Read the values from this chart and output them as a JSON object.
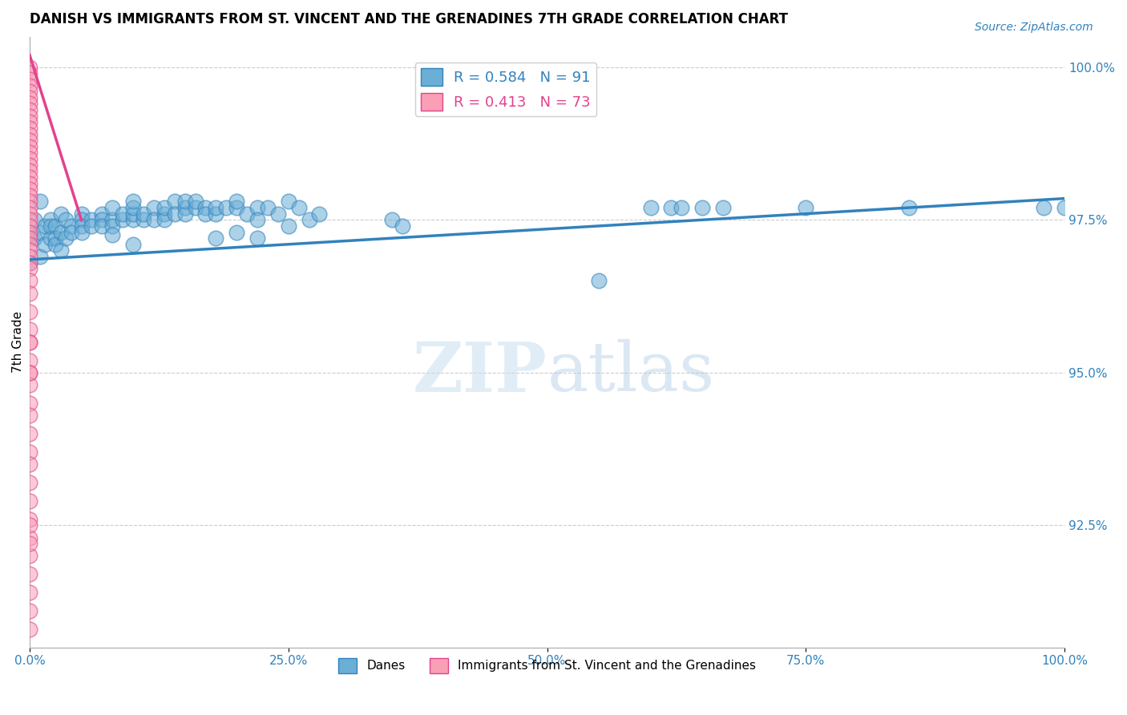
{
  "title": "DANISH VS IMMIGRANTS FROM ST. VINCENT AND THE GRENADINES 7TH GRADE CORRELATION CHART",
  "source": "Source: ZipAtlas.com",
  "ylabel": "7th Grade",
  "ylabel_right_ticks": [
    "100.0%",
    "97.5%",
    "95.0%",
    "92.5%"
  ],
  "ylabel_right_values": [
    1.0,
    0.975,
    0.95,
    0.925
  ],
  "xlim": [
    0.0,
    1.0
  ],
  "ylim": [
    0.905,
    1.005
  ],
  "legend_r_blue": "R = 0.584",
  "legend_n_blue": "N = 91",
  "legend_r_pink": "R = 0.413",
  "legend_n_pink": "N = 73",
  "legend_label_blue": "Danes",
  "legend_label_pink": "Immigrants from St. Vincent and the Grenadines",
  "blue_color": "#6baed6",
  "pink_color": "#fa9fb5",
  "trendline_blue_color": "#3182bd",
  "trendline_pink_color": "#e2428e",
  "watermark_zip": "ZIP",
  "watermark_atlas": "atlas",
  "blue_scatter": [
    [
      0.0,
      0.9725
    ],
    [
      0.0,
      0.968
    ],
    [
      0.005,
      0.975
    ],
    [
      0.005,
      0.972
    ],
    [
      0.01,
      0.978
    ],
    [
      0.01,
      0.973
    ],
    [
      0.01,
      0.969
    ],
    [
      0.015,
      0.971
    ],
    [
      0.015,
      0.974
    ],
    [
      0.02,
      0.972
    ],
    [
      0.02,
      0.975
    ],
    [
      0.02,
      0.974
    ],
    [
      0.025,
      0.974
    ],
    [
      0.025,
      0.972
    ],
    [
      0.025,
      0.971
    ],
    [
      0.03,
      0.973
    ],
    [
      0.03,
      0.97
    ],
    [
      0.03,
      0.976
    ],
    [
      0.035,
      0.972
    ],
    [
      0.035,
      0.975
    ],
    [
      0.04,
      0.974
    ],
    [
      0.04,
      0.973
    ],
    [
      0.05,
      0.976
    ],
    [
      0.05,
      0.975
    ],
    [
      0.05,
      0.974
    ],
    [
      0.05,
      0.973
    ],
    [
      0.06,
      0.975
    ],
    [
      0.06,
      0.974
    ],
    [
      0.07,
      0.976
    ],
    [
      0.07,
      0.975
    ],
    [
      0.07,
      0.974
    ],
    [
      0.08,
      0.975
    ],
    [
      0.08,
      0.974
    ],
    [
      0.08,
      0.977
    ],
    [
      0.09,
      0.975
    ],
    [
      0.09,
      0.976
    ],
    [
      0.1,
      0.975
    ],
    [
      0.1,
      0.976
    ],
    [
      0.1,
      0.977
    ],
    [
      0.1,
      0.978
    ],
    [
      0.11,
      0.975
    ],
    [
      0.11,
      0.976
    ],
    [
      0.12,
      0.977
    ],
    [
      0.12,
      0.975
    ],
    [
      0.13,
      0.976
    ],
    [
      0.13,
      0.975
    ],
    [
      0.13,
      0.977
    ],
    [
      0.14,
      0.978
    ],
    [
      0.14,
      0.976
    ],
    [
      0.15,
      0.977
    ],
    [
      0.15,
      0.976
    ],
    [
      0.15,
      0.978
    ],
    [
      0.16,
      0.977
    ],
    [
      0.16,
      0.978
    ],
    [
      0.17,
      0.977
    ],
    [
      0.17,
      0.976
    ],
    [
      0.18,
      0.976
    ],
    [
      0.18,
      0.977
    ],
    [
      0.19,
      0.977
    ],
    [
      0.2,
      0.977
    ],
    [
      0.2,
      0.978
    ],
    [
      0.21,
      0.976
    ],
    [
      0.22,
      0.977
    ],
    [
      0.22,
      0.975
    ],
    [
      0.23,
      0.977
    ],
    [
      0.24,
      0.976
    ],
    [
      0.25,
      0.978
    ],
    [
      0.25,
      0.974
    ],
    [
      0.26,
      0.977
    ],
    [
      0.27,
      0.975
    ],
    [
      0.28,
      0.976
    ],
    [
      0.08,
      0.9725
    ],
    [
      0.1,
      0.971
    ],
    [
      0.18,
      0.972
    ],
    [
      0.2,
      0.973
    ],
    [
      0.22,
      0.972
    ],
    [
      0.35,
      0.975
    ],
    [
      0.36,
      0.974
    ],
    [
      0.55,
      0.965
    ],
    [
      0.6,
      0.977
    ],
    [
      0.62,
      0.977
    ],
    [
      0.63,
      0.977
    ],
    [
      0.65,
      0.977
    ],
    [
      0.67,
      0.977
    ],
    [
      0.75,
      0.977
    ],
    [
      0.85,
      0.977
    ],
    [
      0.98,
      0.977
    ],
    [
      1.0,
      0.977
    ]
  ],
  "pink_scatter": [
    [
      0.0,
      1.0
    ],
    [
      0.0,
      0.999
    ],
    [
      0.0,
      0.998
    ],
    [
      0.0,
      0.997
    ],
    [
      0.0,
      0.996
    ],
    [
      0.0,
      0.995
    ],
    [
      0.0,
      0.994
    ],
    [
      0.0,
      0.993
    ],
    [
      0.0,
      0.992
    ],
    [
      0.0,
      0.991
    ],
    [
      0.0,
      0.99
    ],
    [
      0.0,
      0.989
    ],
    [
      0.0,
      0.988
    ],
    [
      0.0,
      0.987
    ],
    [
      0.0,
      0.986
    ],
    [
      0.0,
      0.985
    ],
    [
      0.0,
      0.984
    ],
    [
      0.0,
      0.983
    ],
    [
      0.0,
      0.982
    ],
    [
      0.0,
      0.981
    ],
    [
      0.0,
      0.98
    ],
    [
      0.0,
      0.979
    ],
    [
      0.0,
      0.978
    ],
    [
      0.0,
      0.977
    ],
    [
      0.0,
      0.976
    ],
    [
      0.0,
      0.975
    ],
    [
      0.0,
      0.974
    ],
    [
      0.0,
      0.973
    ],
    [
      0.0,
      0.972
    ],
    [
      0.0,
      0.971
    ],
    [
      0.0,
      0.97
    ],
    [
      0.0,
      0.969
    ],
    [
      0.0,
      0.968
    ],
    [
      0.0,
      0.967
    ],
    [
      0.0,
      0.965
    ],
    [
      0.0,
      0.963
    ],
    [
      0.0,
      0.96
    ],
    [
      0.0,
      0.957
    ],
    [
      0.0,
      0.955
    ],
    [
      0.0,
      0.952
    ],
    [
      0.0,
      0.95
    ],
    [
      0.0,
      0.948
    ],
    [
      0.0,
      0.945
    ],
    [
      0.0,
      0.943
    ],
    [
      0.0,
      0.94
    ],
    [
      0.0,
      0.937
    ],
    [
      0.0,
      0.935
    ],
    [
      0.0,
      0.932
    ],
    [
      0.0,
      0.929
    ],
    [
      0.0,
      0.926
    ],
    [
      0.0,
      0.923
    ],
    [
      0.0,
      0.92
    ],
    [
      0.0,
      0.917
    ],
    [
      0.0,
      0.914
    ],
    [
      0.0,
      0.911
    ],
    [
      0.0,
      0.908
    ],
    [
      0.0,
      0.955
    ],
    [
      0.0,
      0.95
    ],
    [
      0.0,
      0.925
    ],
    [
      0.0,
      0.922
    ]
  ],
  "blue_trendline": [
    [
      0.0,
      0.9685
    ],
    [
      1.0,
      0.9785
    ]
  ],
  "pink_trendline": [
    [
      0.0,
      1.002
    ],
    [
      0.05,
      0.975
    ]
  ]
}
